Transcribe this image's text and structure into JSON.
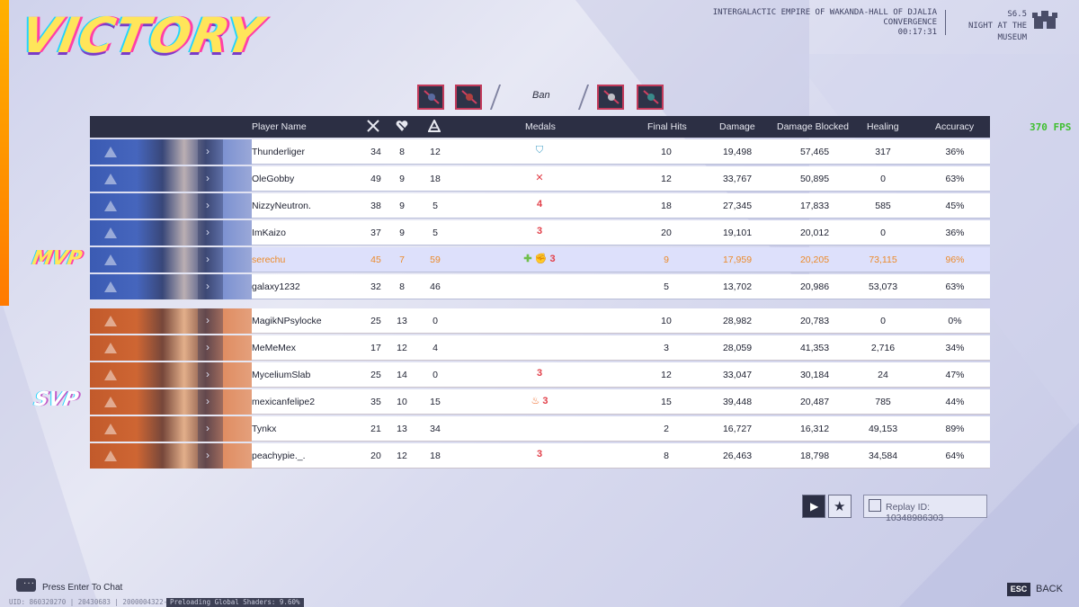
{
  "header": {
    "result": "VICTORY",
    "map_line1": "INTERGALACTIC EMPIRE OF WAKANDA-HALL OF DJALIA",
    "map_line2": "CONVERGENCE",
    "match_time": "00:17:31",
    "season": "S6.5",
    "season_name": "NIGHT AT THE MUSEUM"
  },
  "bans": {
    "label": "Ban"
  },
  "table": {
    "headers": {
      "player_name": "Player Name",
      "medals": "Medals",
      "final_hits": "Final Hits",
      "damage": "Damage",
      "damage_blocked": "Damage Blocked",
      "healing": "Healing",
      "accuracy": "Accuracy"
    },
    "blue_team": [
      {
        "name": "Thunderliger",
        "k": "34",
        "d": "8",
        "a": "12",
        "medals": "shield",
        "final_hits": "10",
        "damage": "19,498",
        "blocked": "57,465",
        "healing": "317",
        "accuracy": "36%"
      },
      {
        "name": "OleGobby",
        "k": "49",
        "d": "9",
        "a": "18",
        "medals": "x",
        "final_hits": "12",
        "damage": "33,767",
        "blocked": "50,895",
        "healing": "0",
        "accuracy": "63%"
      },
      {
        "name": "NizzyNeutron.",
        "k": "38",
        "d": "9",
        "a": "5",
        "medals": "4",
        "final_hits": "18",
        "damage": "27,345",
        "blocked": "17,833",
        "healing": "585",
        "accuracy": "45%"
      },
      {
        "name": "ImKaizo",
        "k": "37",
        "d": "9",
        "a": "5",
        "medals": "3",
        "final_hits": "20",
        "damage": "19,101",
        "blocked": "20,012",
        "healing": "0",
        "accuracy": "36%"
      },
      {
        "name": "serechu",
        "k": "45",
        "d": "7",
        "a": "59",
        "medals": "plus-fist-3",
        "final_hits": "9",
        "damage": "17,959",
        "blocked": "20,205",
        "healing": "73,115",
        "accuracy": "96%"
      },
      {
        "name": "galaxy1232",
        "k": "32",
        "d": "8",
        "a": "46",
        "medals": "",
        "final_hits": "5",
        "damage": "13,702",
        "blocked": "20,986",
        "healing": "53,073",
        "accuracy": "63%"
      }
    ],
    "red_team": [
      {
        "name": "MagikNPsylocke",
        "k": "25",
        "d": "13",
        "a": "0",
        "medals": "",
        "final_hits": "10",
        "damage": "28,982",
        "blocked": "20,783",
        "healing": "0",
        "accuracy": "0%"
      },
      {
        "name": "MeMeMex",
        "k": "17",
        "d": "12",
        "a": "4",
        "medals": "",
        "final_hits": "3",
        "damage": "28,059",
        "blocked": "41,353",
        "healing": "2,716",
        "accuracy": "34%"
      },
      {
        "name": "MyceliumSlab",
        "k": "25",
        "d": "14",
        "a": "0",
        "medals": "3",
        "final_hits": "12",
        "damage": "33,047",
        "blocked": "30,184",
        "healing": "24",
        "accuracy": "47%"
      },
      {
        "name": "mexicanfelipe2",
        "k": "35",
        "d": "10",
        "a": "15",
        "medals": "fire-3",
        "final_hits": "15",
        "damage": "39,448",
        "blocked": "20,487",
        "healing": "785",
        "accuracy": "44%"
      },
      {
        "name": "Tynkx",
        "k": "21",
        "d": "13",
        "a": "34",
        "medals": "",
        "final_hits": "2",
        "damage": "16,727",
        "blocked": "16,312",
        "healing": "49,153",
        "accuracy": "89%"
      },
      {
        "name": "peachypie._.",
        "k": "20",
        "d": "12",
        "a": "18",
        "medals": "3",
        "final_hits": "8",
        "damage": "26,463",
        "blocked": "18,798",
        "healing": "34,584",
        "accuracy": "64%"
      }
    ]
  },
  "tags": {
    "mvp": "MVP",
    "svp": "SVP"
  },
  "fps": "370 FPS",
  "replay": {
    "label": "Replay ID: 10348986303"
  },
  "chat": {
    "label": "Press Enter To Chat"
  },
  "status": {
    "ids": "UID: 860320270 | 20430683 | 2000004322-2488",
    "preload": "Preloading Global Shaders: 9.60%"
  },
  "footer": {
    "esc": "ESC",
    "back": "BACK"
  },
  "colors": {
    "blue_team": "#3b5bb3",
    "red_team": "#c25a2b",
    "mvp_text": "#ec8a2a",
    "header_bg": "#2c2f44",
    "fps": "#3fbf2f"
  }
}
